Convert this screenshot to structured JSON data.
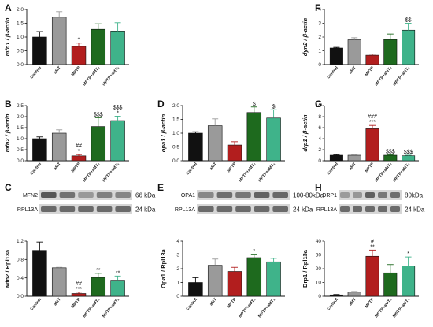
{
  "colors": {
    "Control": "#111111",
    "aMT": "#9a9a9a",
    "MPTP": "#b21e1e",
    "MPTP+aMT2": "#1e6a1e",
    "MPTP+aMT3": "#3fb38a"
  },
  "chart_data": [
    {
      "id": "A",
      "type": "bar",
      "letter": "A",
      "ylabel": "mfn1 / β-actin",
      "categories": [
        "Control",
        "aMT",
        "MPTP",
        "MPTP+aMT₂",
        "MPTP+aMT₃"
      ],
      "values": [
        1.0,
        1.72,
        0.66,
        1.28,
        1.22
      ],
      "errors": [
        0.2,
        0.2,
        0.12,
        0.2,
        0.3
      ],
      "sig": [
        "",
        "",
        "*",
        "",
        ""
      ],
      "ylim": [
        0,
        2.0
      ],
      "yticks": [
        "0.0",
        "0.5",
        "1.0",
        "1.5",
        "2.0"
      ]
    },
    {
      "id": "B",
      "type": "bar",
      "letter": "B",
      "ylabel": "mfn2 / β-actin",
      "categories": [
        "Control",
        "aMT",
        "MPTP",
        "MPTP+aMT₂",
        "MPTP+aMT₃"
      ],
      "values": [
        1.0,
        1.25,
        0.22,
        1.55,
        1.82
      ],
      "errors": [
        0.08,
        0.15,
        0.06,
        0.4,
        0.2
      ],
      "sig": [
        "",
        "",
        "##\n*",
        "$$$",
        "$$$\n*"
      ],
      "ylim": [
        0,
        2.5
      ],
      "yticks": [
        "0.0",
        "0.5",
        "1.0",
        "1.5",
        "2.0",
        "2.5"
      ]
    },
    {
      "id": "C",
      "type": "bar",
      "letter": "C",
      "ylabel": "Mfn2 / Rpl13a",
      "categories": [
        "Control",
        "aMT",
        "MPTP",
        "MPTP+aMT₂",
        "MPTP+aMT₃"
      ],
      "values": [
        1.0,
        0.62,
        0.06,
        0.41,
        0.35
      ],
      "errors": [
        0.18,
        0.01,
        0.03,
        0.09,
        0.09
      ],
      "sig": [
        "",
        "",
        "##\n***",
        "**",
        "**"
      ],
      "ylim": [
        0,
        1.2
      ],
      "yticks": [
        "0.0",
        "0.4",
        "0.8",
        "1.2"
      ],
      "blot": {
        "rows": [
          "MFN2",
          "RPL13A"
        ],
        "kda": [
          "66 kDa",
          "24 kDa"
        ]
      }
    },
    {
      "id": "D",
      "type": "bar",
      "letter": "D",
      "ylabel": "opa1 / β-actin",
      "categories": [
        "Control",
        "aMT",
        "MPTP",
        "MPTP+aMT₂",
        "MPTP+aMT₃"
      ],
      "values": [
        1.0,
        1.27,
        0.57,
        1.75,
        1.55
      ],
      "errors": [
        0.05,
        0.25,
        0.12,
        0.2,
        0.3
      ],
      "sig": [
        "",
        "",
        "",
        "$",
        "$"
      ],
      "ylim": [
        0,
        2.0
      ],
      "yticks": [
        "0.0",
        "0.5",
        "1.0",
        "1.5",
        "2.0"
      ]
    },
    {
      "id": "E",
      "type": "bar",
      "letter": "E",
      "ylabel": "Opa1 / Rpl13a",
      "categories": [
        "Control",
        "aMT",
        "MPTP",
        "MPTP+aMT₂",
        "MPTP+aMT₃"
      ],
      "values": [
        1.0,
        2.25,
        1.8,
        2.8,
        2.5
      ],
      "errors": [
        0.35,
        0.45,
        0.3,
        0.25,
        0.25
      ],
      "sig": [
        "",
        "",
        "",
        "*",
        ""
      ],
      "ylim": [
        0,
        4
      ],
      "yticks": [
        "0",
        "1",
        "2",
        "3",
        "4"
      ],
      "blot": {
        "rows": [
          "OPA1",
          "RPL13A"
        ],
        "kda": [
          "100-80kDa",
          "24 kDa"
        ]
      }
    },
    {
      "id": "F",
      "type": "bar",
      "letter": "F",
      "ylabel": "dyn2 / β-actin",
      "categories": [
        "Control",
        "aMT",
        "MPTP",
        "MPTP+aMT₂",
        "MPTP+aMT₃"
      ],
      "values": [
        1.2,
        1.8,
        0.68,
        1.82,
        2.5
      ],
      "errors": [
        0.05,
        0.15,
        0.08,
        0.4,
        0.5
      ],
      "sig": [
        "",
        "",
        "",
        "",
        "$$"
      ],
      "ylim": [
        0,
        4
      ],
      "yticks": [
        "0",
        "1",
        "2",
        "3",
        "4"
      ]
    },
    {
      "id": "G",
      "type": "bar",
      "letter": "G",
      "ylabel": "drp1 / β-actin",
      "categories": [
        "Control",
        "aMT",
        "MPTP",
        "MPTP+aMT₂",
        "MPTP+aMT₃"
      ],
      "values": [
        1.0,
        1.0,
        5.8,
        1.0,
        0.9
      ],
      "errors": [
        0.1,
        0.15,
        0.6,
        0.1,
        0.1
      ],
      "sig": [
        "",
        "",
        "###\n***",
        "$$$",
        "$$$"
      ],
      "ylim": [
        0,
        10
      ],
      "yticks": [
        "0",
        "2",
        "4",
        "6",
        "8",
        "10"
      ]
    },
    {
      "id": "H",
      "type": "bar",
      "letter": "H",
      "ylabel": "Drp1 / Rpl13a",
      "categories": [
        "Control",
        "aMT",
        "MPTP",
        "MPTP+aMT₂",
        "MPTP+aMT₃"
      ],
      "values": [
        1.0,
        3.0,
        29.0,
        17.0,
        22.0
      ],
      "errors": [
        0.3,
        0.5,
        4.5,
        6.0,
        6.5
      ],
      "sig": [
        "",
        "",
        "#\n**",
        "",
        "*"
      ],
      "ylim": [
        0,
        40
      ],
      "yticks": [
        "0",
        "10",
        "20",
        "30",
        "40"
      ],
      "blot": {
        "rows": [
          "DRP1",
          "RPL13A"
        ],
        "kda": [
          "80kDa",
          "24 kDa"
        ]
      }
    }
  ]
}
